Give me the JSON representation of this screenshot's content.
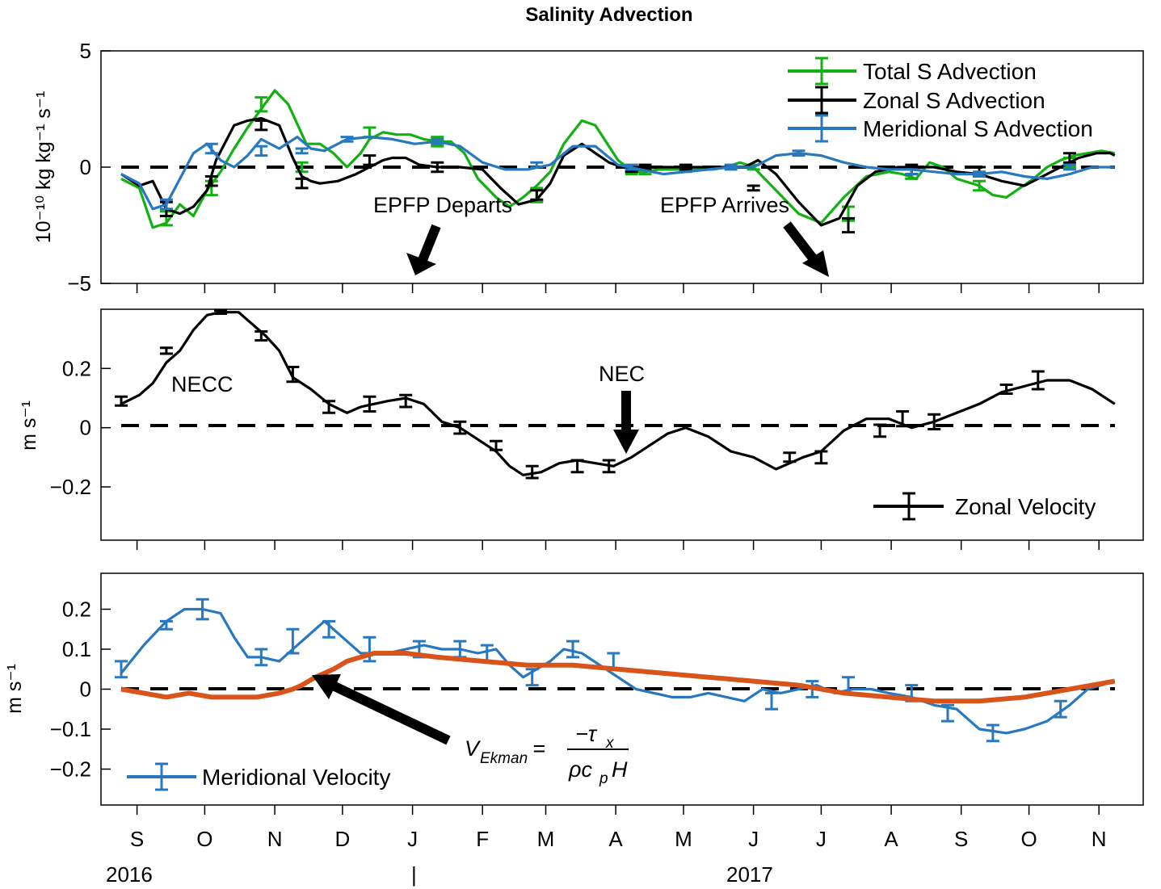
{
  "figure": {
    "title": "Salinity Advection",
    "months": [
      "S",
      "O",
      "N",
      "D",
      "J",
      "F",
      "M",
      "A",
      "M",
      "J",
      "J",
      "A",
      "S",
      "O",
      "N"
    ],
    "year_labels": [
      "2016",
      "2017"
    ],
    "year_separator": "|",
    "colors": {
      "green": "#12b012",
      "black": "#000000",
      "blue": "#2878c0",
      "orange": "#d9541a"
    }
  },
  "chart_data": [
    {
      "id": "advection",
      "type": "line",
      "ylabel": "10⁻¹⁰ kg kg⁻¹ s⁻¹",
      "ylim": [
        -5,
        5
      ],
      "yticks": [
        -5,
        0,
        5
      ],
      "ytick_labels": [
        "−5",
        "0",
        "5"
      ],
      "x_units": "days since 2016-08-23",
      "legend": {
        "placement": "top-right",
        "entries": [
          "Total S Advection",
          "Zonal S Advection",
          "Meridional S Advection"
        ]
      },
      "series": [
        {
          "name": "Total S Advection",
          "color": "#12b012",
          "x": [
            0,
            8,
            14,
            20,
            26,
            32,
            38,
            44,
            50,
            56,
            62,
            68,
            74,
            82,
            88,
            94,
            100,
            106,
            110,
            116,
            122,
            128,
            134,
            140,
            146,
            152,
            158,
            166,
            172,
            178,
            184,
            190,
            196,
            204,
            210,
            216,
            220,
            224,
            228,
            232,
            238,
            244,
            250,
            256,
            262,
            268,
            274,
            280,
            290,
            300,
            310,
            320,
            330,
            340,
            346,
            352,
            358,
            364,
            370,
            380,
            386,
            392,
            398,
            404,
            410,
            416,
            422,
            428,
            434,
            440
          ],
          "y": [
            -0.5,
            -0.9,
            -2.6,
            -2.4,
            -1.6,
            -2.1,
            -1.0,
            -0.2,
            0.8,
            1.7,
            2.5,
            3.3,
            2.7,
            1.0,
            1.0,
            0.6,
            0.0,
            0.6,
            1.2,
            1.5,
            1.4,
            1.4,
            1.2,
            1.1,
            1.1,
            0.6,
            -0.5,
            -1.3,
            -1.7,
            -1.3,
            -0.8,
            -0.2,
            1.0,
            2.0,
            1.8,
            0.9,
            0.3,
            0.0,
            -0.2,
            -0.2,
            -0.1,
            -0.1,
            -0.1,
            -0.1,
            -0.1,
            0.0,
            0.2,
            0.0,
            -1.0,
            -2.0,
            -2.4,
            -1.3,
            -0.4,
            -0.2,
            -0.3,
            -0.5,
            0.2,
            0.0,
            -0.5,
            -0.8,
            -1.2,
            -1.3,
            -0.9,
            -0.5,
            0.0,
            0.3,
            0.5,
            0.6,
            0.7,
            0.6
          ],
          "error_x": [
            20,
            40,
            62,
            80,
            110,
            140,
            184,
            226,
            232,
            250,
            280,
            322,
            350,
            380,
            420
          ],
          "error_y": [
            -2.2,
            -0.9,
            2.7,
            0.0,
            1.5,
            1.1,
            -1.2,
            -0.2,
            -0.2,
            -0.1,
            0.0,
            -2.0,
            -0.3,
            -0.8,
            0.2
          ],
          "error_half": [
            0.3,
            0.3,
            0.3,
            0.2,
            0.2,
            0.2,
            0.3,
            0.1,
            0.1,
            0.1,
            0.1,
            0.3,
            0.2,
            0.2,
            0.2
          ]
        },
        {
          "name": "Zonal S Advection",
          "color": "#000000",
          "x": [
            0,
            8,
            14,
            20,
            26,
            32,
            38,
            42,
            50,
            56,
            62,
            70,
            76,
            80,
            84,
            88,
            96,
            104,
            110,
            116,
            120,
            126,
            132,
            140,
            150,
            160,
            168,
            176,
            184,
            190,
            196,
            204,
            210,
            216,
            222,
            230,
            240,
            250,
            260,
            270,
            276,
            282,
            290,
            300,
            310,
            318,
            326,
            334,
            344,
            352,
            360,
            370,
            380,
            390,
            400,
            410,
            416,
            424,
            432,
            438,
            440
          ],
          "y": [
            -0.3,
            -0.8,
            -0.6,
            -1.8,
            -2.0,
            -1.7,
            -1.0,
            0.3,
            1.8,
            2.0,
            2.1,
            1.8,
            0.4,
            -0.4,
            -0.6,
            -0.7,
            -0.6,
            -0.3,
            0.0,
            0.3,
            0.4,
            0.4,
            0.1,
            0.0,
            0.0,
            -0.1,
            -0.9,
            -1.6,
            -1.4,
            -0.7,
            0.5,
            1.0,
            0.6,
            0.2,
            0.0,
            0.0,
            0.0,
            0.0,
            0.0,
            0.0,
            0.0,
            0.3,
            -0.3,
            -1.5,
            -2.5,
            -2.2,
            -0.8,
            -0.2,
            0.0,
            0.0,
            0.0,
            -0.2,
            -0.3,
            -0.6,
            -0.8,
            -0.3,
            0.0,
            0.4,
            0.6,
            0.6,
            0.5
          ],
          "error_x": [
            20,
            40,
            62,
            80,
            110,
            140,
            184,
            226,
            232,
            250,
            280,
            322,
            350,
            380,
            420
          ],
          "error_y": [
            -1.8,
            -0.6,
            1.8,
            -0.7,
            0.3,
            0.0,
            -1.2,
            -0.1,
            0.0,
            0.0,
            -0.9,
            -2.5,
            -0.1,
            -0.2,
            0.4
          ],
          "error_half": [
            0.3,
            0.2,
            0.2,
            0.2,
            0.2,
            0.2,
            0.2,
            0.1,
            0.1,
            0.1,
            0.1,
            0.3,
            0.2,
            0.2,
            0.2
          ]
        },
        {
          "name": "Meridional S Advection",
          "color": "#2878c0",
          "x": [
            0,
            8,
            14,
            20,
            26,
            32,
            38,
            44,
            50,
            56,
            62,
            70,
            78,
            84,
            90,
            100,
            110,
            120,
            130,
            140,
            150,
            160,
            170,
            180,
            190,
            200,
            210,
            220,
            230,
            240,
            250,
            260,
            270,
            280,
            290,
            300,
            310,
            320,
            330,
            340,
            350,
            360,
            370,
            380,
            390,
            400,
            410,
            420,
            430,
            440
          ],
          "y": [
            -0.3,
            -0.7,
            -1.8,
            -1.6,
            -0.5,
            0.6,
            1.0,
            0.3,
            0.0,
            0.5,
            1.2,
            0.8,
            1.3,
            0.8,
            0.7,
            1.2,
            1.3,
            1.2,
            1.0,
            1.1,
            0.9,
            0.2,
            -0.1,
            -0.1,
            0.1,
            0.9,
            0.9,
            0.1,
            -0.1,
            -0.3,
            -0.2,
            -0.1,
            0.0,
            0.0,
            0.5,
            0.6,
            0.5,
            0.2,
            0.0,
            -0.1,
            -0.1,
            -0.2,
            -0.3,
            -0.3,
            -0.2,
            -0.4,
            -0.5,
            -0.3,
            0.0,
            0.0
          ],
          "error_x": [
            20,
            40,
            62,
            80,
            100,
            140,
            184,
            226,
            270,
            300,
            350,
            380,
            420
          ],
          "error_y": [
            -1.6,
            0.8,
            0.7,
            0.7,
            1.2,
            1.1,
            0.1,
            0.0,
            0.0,
            0.6,
            -0.2,
            -0.3,
            0.0
          ],
          "error_half": [
            0.2,
            0.2,
            0.2,
            0.1,
            0.1,
            0.1,
            0.1,
            0.1,
            0.1,
            0.1,
            0.1,
            0.1,
            0.1
          ]
        }
      ],
      "annotations": [
        {
          "text": "EPFP Departs",
          "arrow_to": [
            132,
            -4.7
          ]
        },
        {
          "text": "EPFP Arrives",
          "arrow_to": [
            318,
            -4.7
          ]
        }
      ]
    },
    {
      "id": "zonal_velocity",
      "type": "line",
      "ylabel": "m s⁻¹",
      "ylim": [
        -0.38,
        0.4
      ],
      "yticks": [
        -0.2,
        0,
        0.2
      ],
      "ytick_labels": [
        "−0.2",
        "0",
        "0.2"
      ],
      "x_units": "days since 2016-08-23",
      "legend": {
        "placement": "bottom-right",
        "entries": [
          "Zonal Velocity"
        ]
      },
      "series": [
        {
          "name": "Zonal Velocity",
          "color": "#000000",
          "x": [
            0,
            8,
            14,
            20,
            26,
            32,
            38,
            44,
            52,
            58,
            64,
            70,
            76,
            84,
            92,
            100,
            106,
            112,
            118,
            126,
            134,
            142,
            150,
            158,
            166,
            172,
            178,
            186,
            194,
            202,
            210,
            218,
            226,
            234,
            242,
            250,
            260,
            270,
            280,
            290,
            296,
            302,
            310,
            320,
            330,
            340,
            350,
            360,
            370,
            380,
            390,
            400,
            410,
            420,
            430,
            440
          ],
          "y": [
            0.08,
            0.11,
            0.15,
            0.22,
            0.26,
            0.33,
            0.38,
            0.39,
            0.39,
            0.35,
            0.31,
            0.26,
            0.17,
            0.13,
            0.08,
            0.05,
            0.07,
            0.08,
            0.09,
            0.1,
            0.08,
            0.02,
            0.0,
            -0.04,
            -0.08,
            -0.13,
            -0.16,
            -0.15,
            -0.12,
            -0.11,
            -0.12,
            -0.13,
            -0.1,
            -0.06,
            -0.02,
            0.0,
            -0.03,
            -0.08,
            -0.1,
            -0.14,
            -0.12,
            -0.1,
            -0.08,
            -0.01,
            0.03,
            0.03,
            0.0,
            0.02,
            0.05,
            0.08,
            0.12,
            0.14,
            0.16,
            0.16,
            0.13,
            0.08
          ],
          "error_x": [
            0,
            20,
            44,
            62,
            76,
            92,
            110,
            126,
            150,
            166,
            182,
            202,
            216,
            296,
            310,
            336,
            346,
            360,
            392,
            406
          ],
          "error_y": [
            0.09,
            0.26,
            0.39,
            0.31,
            0.18,
            0.07,
            0.08,
            0.09,
            0.0,
            -0.06,
            -0.15,
            -0.13,
            -0.13,
            -0.1,
            -0.1,
            -0.01,
            0.03,
            0.02,
            0.13,
            0.16
          ],
          "error_half": [
            0.015,
            0.01,
            0.005,
            0.015,
            0.025,
            0.02,
            0.025,
            0.02,
            0.02,
            0.015,
            0.02,
            0.02,
            0.02,
            0.015,
            0.02,
            0.02,
            0.025,
            0.025,
            0.015,
            0.03
          ]
        }
      ],
      "annotations": [
        {
          "text": "NECC",
          "at": [
            29,
            0.14
          ]
        },
        {
          "text": "NEC",
          "arrow_to": [
            226,
            -0.09
          ]
        }
      ]
    },
    {
      "id": "meridional_velocity",
      "type": "line",
      "ylabel": "m s⁻¹",
      "ylim": [
        -0.29,
        0.29
      ],
      "yticks": [
        -0.2,
        -0.1,
        0,
        0.1,
        0.2
      ],
      "ytick_labels": [
        "−0.2",
        "−0.1",
        "0",
        "0.1",
        "0.2"
      ],
      "x_units": "days since 2016-08-23",
      "legend": {
        "placement": "bottom-left",
        "entries": [
          "Meridional Velocity"
        ]
      },
      "series": [
        {
          "name": "Meridional Velocity",
          "color": "#2878c0",
          "x": [
            0,
            10,
            20,
            28,
            36,
            44,
            50,
            56,
            62,
            70,
            78,
            84,
            90,
            96,
            102,
            106,
            112,
            118,
            126,
            134,
            142,
            150,
            158,
            166,
            172,
            178,
            184,
            190,
            196,
            204,
            212,
            220,
            228,
            236,
            244,
            252,
            260,
            268,
            276,
            284,
            292,
            300,
            308,
            316,
            324,
            332,
            340,
            350,
            360,
            370,
            380,
            392,
            400,
            410,
            420,
            428,
            440
          ],
          "y": [
            0.04,
            0.11,
            0.17,
            0.2,
            0.2,
            0.19,
            0.13,
            0.08,
            0.08,
            0.07,
            0.11,
            0.14,
            0.17,
            0.14,
            0.11,
            0.09,
            0.09,
            0.09,
            0.1,
            0.11,
            0.1,
            0.1,
            0.09,
            0.1,
            0.06,
            0.03,
            0.05,
            0.07,
            0.1,
            0.09,
            0.06,
            0.03,
            0.0,
            -0.01,
            -0.02,
            -0.02,
            -0.01,
            -0.02,
            -0.03,
            0.0,
            -0.01,
            0.0,
            0.01,
            -0.01,
            0.0,
            0.0,
            -0.01,
            -0.02,
            -0.04,
            -0.05,
            -0.1,
            -0.11,
            -0.1,
            -0.08,
            -0.04,
            0.0,
            0.02
          ],
          "error_x": [
            0,
            20,
            36,
            62,
            76,
            92,
            110,
            132,
            150,
            162,
            182,
            200,
            218,
            288,
            306,
            322,
            350,
            366,
            386,
            416
          ],
          "error_y": [
            0.05,
            0.16,
            0.2,
            0.08,
            0.12,
            0.15,
            0.1,
            0.1,
            0.1,
            0.09,
            0.03,
            0.1,
            0.07,
            -0.03,
            0.0,
            0.01,
            -0.01,
            -0.06,
            -0.11,
            -0.05
          ],
          "error_half": [
            0.02,
            0.01,
            0.025,
            0.02,
            0.03,
            0.02,
            0.03,
            0.02,
            0.02,
            0.02,
            0.02,
            0.02,
            0.02,
            0.02,
            0.02,
            0.02,
            0.02,
            0.02,
            0.02,
            0.02
          ]
        },
        {
          "name": "",
          "color": "#d9541a",
          "x": [
            0,
            10,
            20,
            30,
            40,
            50,
            60,
            70,
            76,
            80,
            86,
            94,
            100,
            106,
            112,
            118,
            126,
            140,
            160,
            180,
            200,
            220,
            240,
            260,
            280,
            300,
            320,
            340,
            360,
            380,
            400,
            420,
            430,
            440
          ],
          "y": [
            0.0,
            -0.01,
            -0.02,
            -0.01,
            -0.02,
            -0.02,
            -0.02,
            -0.01,
            0.0,
            0.01,
            0.03,
            0.05,
            0.07,
            0.08,
            0.09,
            0.09,
            0.09,
            0.08,
            0.07,
            0.06,
            0.06,
            0.05,
            0.04,
            0.03,
            0.02,
            0.01,
            -0.01,
            -0.02,
            -0.03,
            -0.03,
            -0.02,
            0.0,
            0.01,
            0.02
          ],
          "line_width": 6
        }
      ],
      "annotations": [
        {
          "text_parts": [
            "V",
            "Ekman",
            " = ",
            "−τ",
            "x",
            "ρc",
            "p",
            "H"
          ],
          "arrow_to": [
            85,
            0.04
          ]
        }
      ]
    }
  ]
}
